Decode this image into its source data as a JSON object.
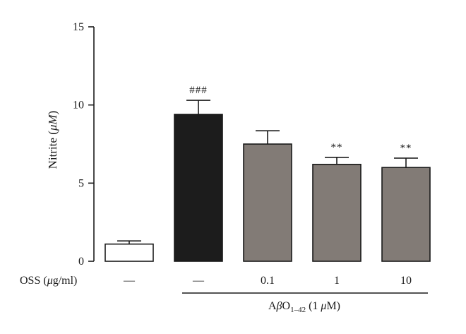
{
  "chart_data": {
    "type": "bar",
    "title": "",
    "ylabel_main": "Nitrite (",
    "ylabel_unit_italic": "μM",
    "ylabel_close": ")",
    "ylim": [
      0,
      15
    ],
    "yticks": [
      "0",
      "5",
      "10",
      "15"
    ],
    "categories": [
      "—",
      "—",
      "0.1",
      "1",
      "10"
    ],
    "values": [
      1.1,
      9.4,
      7.5,
      6.2,
      6.0
    ],
    "errors": [
      0.2,
      0.9,
      0.85,
      0.45,
      0.6
    ],
    "annotations": [
      "",
      "###",
      "",
      "**",
      "**"
    ],
    "bar_colors": [
      "#ffffff",
      "#1c1c1c",
      "#827b76",
      "#827b76",
      "#827b76"
    ],
    "row_label_prefix": "OSS (",
    "row_label_unit_italic": "μ",
    "row_label_suffix": "g/ml)",
    "group_label": {
      "prefix": "A",
      "beta": "β",
      "o": "O",
      "subscript": "1–42",
      "conc_open": " (1 ",
      "conc_unit_italic": "μ",
      "conc_close": "M)"
    }
  }
}
